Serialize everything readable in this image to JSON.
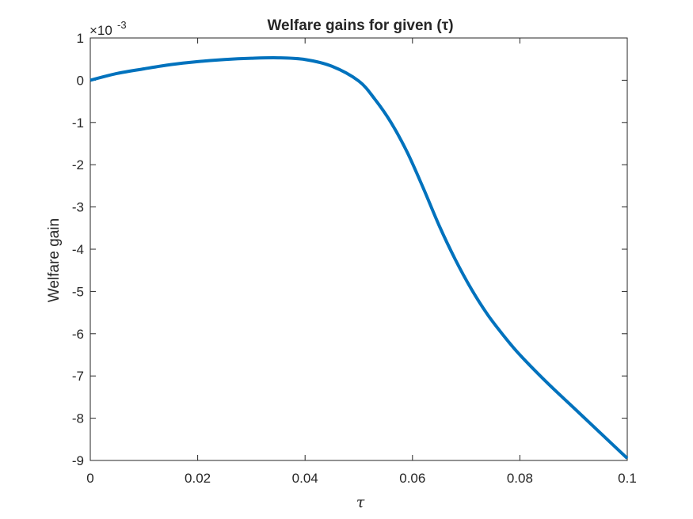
{
  "chart_data": {
    "type": "line",
    "title": "Welfare gains for given (τ)",
    "xlabel": "τ",
    "ylabel": "Welfare gain",
    "exponent_label": "×10",
    "exponent_power": "-3",
    "xlim": [
      0,
      0.1
    ],
    "ylim": [
      -9,
      1
    ],
    "y_scale": 0.001,
    "xticks": [
      0,
      0.02,
      0.04,
      0.06,
      0.08,
      0.1
    ],
    "xtick_labels": [
      "0",
      "0.02",
      "0.04",
      "0.06",
      "0.08",
      "0.1"
    ],
    "yticks": [
      1,
      0,
      -1,
      -2,
      -3,
      -4,
      -5,
      -6,
      -7,
      -8,
      -9
    ],
    "ytick_labels": [
      "1",
      "0",
      "-1",
      "-2",
      "-3",
      "-4",
      "-5",
      "-6",
      "-7",
      "-8",
      "-9"
    ],
    "grid": false,
    "series": [
      {
        "color": "#0072BD",
        "x": [
          0,
          0.005,
          0.01,
          0.015,
          0.02,
          0.025,
          0.03,
          0.035,
          0.04,
          0.045,
          0.05,
          0.053,
          0.056,
          0.059,
          0.062,
          0.065,
          0.068,
          0.071,
          0.074,
          0.077,
          0.08,
          0.085,
          0.09,
          0.095,
          0.1
        ],
        "y": [
          0.0,
          0.16,
          0.27,
          0.37,
          0.44,
          0.49,
          0.52,
          0.53,
          0.49,
          0.33,
          -0.02,
          -0.45,
          -1.0,
          -1.7,
          -2.55,
          -3.45,
          -4.25,
          -4.95,
          -5.55,
          -6.05,
          -6.5,
          -7.15,
          -7.75,
          -8.35,
          -8.95
        ]
      }
    ]
  }
}
